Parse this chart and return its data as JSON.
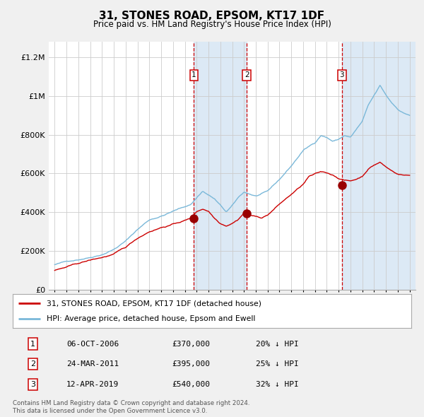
{
  "title": "31, STONES ROAD, EPSOM, KT17 1DF",
  "subtitle": "Price paid vs. HM Land Registry's House Price Index (HPI)",
  "legend_line1": "31, STONES ROAD, EPSOM, KT17 1DF (detached house)",
  "legend_line2": "HPI: Average price, detached house, Epsom and Ewell",
  "footer1": "Contains HM Land Registry data © Crown copyright and database right 2024.",
  "footer2": "This data is licensed under the Open Government Licence v3.0.",
  "hpi_color": "#7ab8d9",
  "price_color": "#cc0000",
  "background_color": "#dce9f5",
  "plot_bg_color": "#ffffff",
  "grid_color": "#cccccc",
  "marker_color": "#990000",
  "purchases": [
    {
      "label": "1",
      "date": 2006.77,
      "price": 370000,
      "note": "06-OCT-2006",
      "pct": "20% ↓ HPI"
    },
    {
      "label": "2",
      "date": 2011.23,
      "price": 395000,
      "note": "24-MAR-2011",
      "pct": "25% ↓ HPI"
    },
    {
      "label": "3",
      "date": 2019.28,
      "price": 540000,
      "note": "12-APR-2019",
      "pct": "32% ↓ HPI"
    }
  ],
  "ylim": [
    0,
    1280000
  ],
  "xlim": [
    1994.5,
    2025.5
  ],
  "yticks": [
    0,
    200000,
    400000,
    600000,
    800000,
    1000000,
    1200000
  ],
  "ytick_labels": [
    "£0",
    "£200K",
    "£400K",
    "£600K",
    "£800K",
    "£1M",
    "£1.2M"
  ],
  "xticks": [
    1995,
    1996,
    1997,
    1998,
    1999,
    2000,
    2001,
    2002,
    2003,
    2004,
    2005,
    2006,
    2007,
    2008,
    2009,
    2010,
    2011,
    2012,
    2013,
    2014,
    2015,
    2016,
    2017,
    2018,
    2019,
    2020,
    2021,
    2022,
    2023,
    2024,
    2025
  ],
  "hpi_anchors_t": [
    1995.0,
    1996.0,
    1997.0,
    1998.0,
    1999.0,
    2000.0,
    2001.0,
    2002.0,
    2003.0,
    2004.0,
    2005.0,
    2006.5,
    2007.5,
    2008.5,
    2009.5,
    2010.0,
    2010.5,
    2011.0,
    2011.5,
    2012.0,
    2013.0,
    2014.0,
    2015.0,
    2016.0,
    2017.0,
    2017.5,
    2018.0,
    2018.5,
    2019.0,
    2019.5,
    2020.0,
    2020.5,
    2021.0,
    2021.5,
    2022.0,
    2022.5,
    2023.0,
    2023.5,
    2024.0,
    2024.5,
    2025.0
  ],
  "hpi_anchors_v": [
    130000,
    145000,
    158000,
    172000,
    190000,
    218000,
    260000,
    320000,
    370000,
    390000,
    415000,
    450000,
    520000,
    480000,
    410000,
    440000,
    480000,
    510000,
    500000,
    490000,
    510000,
    570000,
    640000,
    720000,
    760000,
    800000,
    790000,
    770000,
    780000,
    800000,
    790000,
    830000,
    870000,
    950000,
    1000000,
    1050000,
    1000000,
    960000,
    930000,
    910000,
    900000
  ],
  "price_anchors_t": [
    1995.0,
    1996.0,
    1997.0,
    1998.0,
    1999.0,
    2000.0,
    2001.0,
    2002.0,
    2003.0,
    2004.0,
    2005.0,
    2006.0,
    2006.5,
    2007.0,
    2007.5,
    2008.0,
    2008.5,
    2009.0,
    2009.5,
    2010.0,
    2010.5,
    2011.0,
    2011.5,
    2012.0,
    2012.5,
    2013.0,
    2014.0,
    2015.0,
    2016.0,
    2016.5,
    2017.0,
    2017.5,
    2018.0,
    2018.5,
    2019.0,
    2019.5,
    2020.0,
    2020.5,
    2021.0,
    2021.5,
    2022.0,
    2022.5,
    2023.0,
    2023.5,
    2024.0,
    2024.5,
    2025.0
  ],
  "price_anchors_v": [
    100000,
    115000,
    132000,
    148000,
    162000,
    178000,
    210000,
    258000,
    295000,
    318000,
    335000,
    355000,
    365000,
    400000,
    415000,
    405000,
    370000,
    345000,
    335000,
    350000,
    370000,
    405000,
    395000,
    385000,
    380000,
    395000,
    450000,
    500000,
    550000,
    590000,
    600000,
    610000,
    605000,
    595000,
    580000,
    570000,
    565000,
    575000,
    590000,
    630000,
    650000,
    665000,
    640000,
    620000,
    605000,
    600000,
    598000
  ]
}
